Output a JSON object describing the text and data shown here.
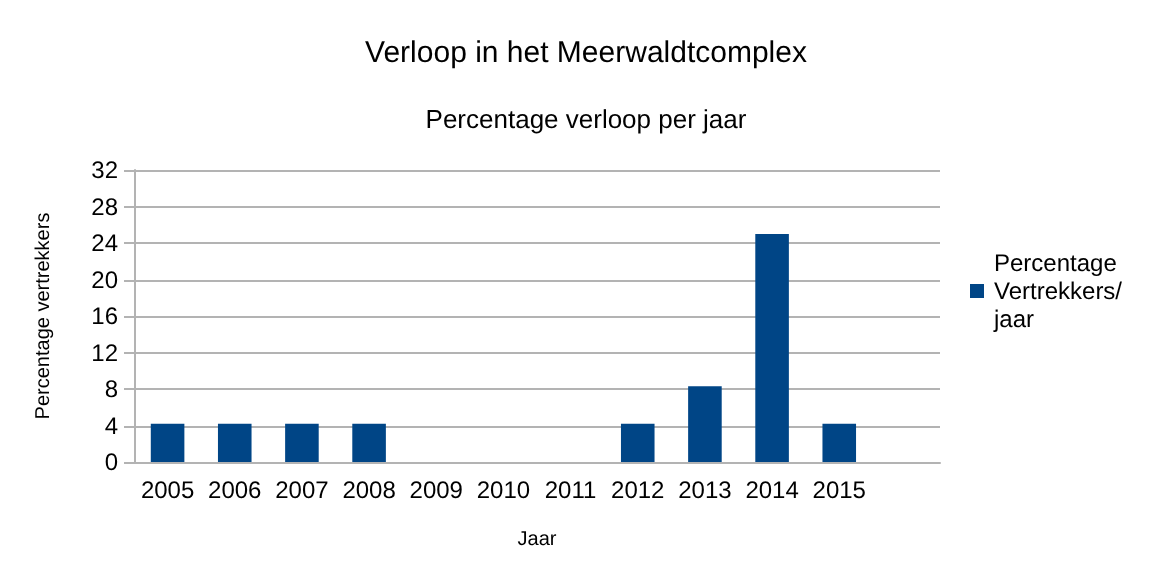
{
  "chart_data": {
    "type": "bar",
    "title": "Verloop in het Meerwaldtcomplex",
    "subtitle": "Percentage verloop per jaar",
    "xlabel": "Jaar",
    "ylabel": "Percentage vertrekkers",
    "categories": [
      "2005",
      "2006",
      "2007",
      "2008",
      "2009",
      "2010",
      "2011",
      "2012",
      "2013",
      "2014",
      "2015",
      null
    ],
    "series": [
      {
        "name": "Percentage Vertrekkers/ jaar",
        "color": "#004586",
        "values": [
          4.2,
          4.2,
          4.2,
          4.2,
          0,
          0,
          0,
          4.2,
          8.3,
          25,
          4.2,
          null
        ]
      }
    ],
    "ylim": [
      0,
      32
    ],
    "yticks": [
      0,
      4,
      8,
      12,
      16,
      20,
      24,
      28,
      32
    ],
    "grid": "y",
    "legend": "right"
  }
}
